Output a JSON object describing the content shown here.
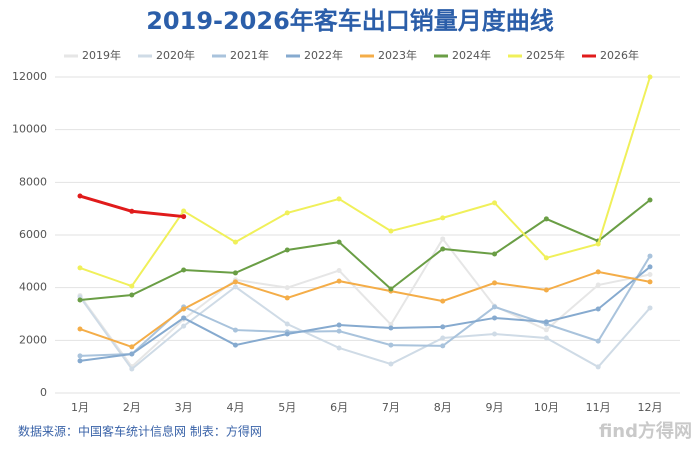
{
  "chart_data": {
    "type": "line",
    "title": "2019-2026年客车出口销量月度曲线",
    "categories": [
      "1月",
      "2月",
      "3月",
      "4月",
      "5月",
      "6月",
      "7月",
      "8月",
      "9月",
      "10月",
      "11月",
      "12月"
    ],
    "ylim": [
      0,
      12000
    ],
    "yticks": [
      0,
      2000,
      4000,
      6000,
      8000,
      10000,
      12000
    ],
    "grid": true,
    "legend": "top",
    "series": [
      {
        "name": "2019年",
        "color": "#e6e6e6",
        "values": [
          3700,
          1000,
          2800,
          4300,
          4000,
          4650,
          2600,
          5850,
          3300,
          2400,
          4100,
          4500
        ]
      },
      {
        "name": "2020年",
        "color": "#cfdbe6",
        "values": [
          3650,
          910,
          2540,
          4030,
          2620,
          1710,
          1100,
          2090,
          2240,
          2090,
          990,
          3230
        ]
      },
      {
        "name": "2021年",
        "color": "#a9c3dc",
        "values": [
          1410,
          1480,
          3270,
          2390,
          2320,
          2350,
          1820,
          1790,
          3270,
          2620,
          1970,
          5200
        ]
      },
      {
        "name": "2022年",
        "color": "#86aacf",
        "values": [
          1220,
          1480,
          2850,
          1820,
          2240,
          2580,
          2470,
          2510,
          2850,
          2700,
          3190,
          4790
        ]
      },
      {
        "name": "2023年",
        "color": "#f4ad48",
        "values": [
          2430,
          1750,
          3190,
          4220,
          3610,
          4250,
          3870,
          3490,
          4180,
          3910,
          4600,
          4220
        ]
      },
      {
        "name": "2024年",
        "color": "#6a9e45",
        "values": [
          3530,
          3720,
          4670,
          4560,
          5430,
          5730,
          3950,
          5470,
          5280,
          6610,
          5770,
          7330
        ]
      },
      {
        "name": "2025年",
        "color": "#f0f05a",
        "values": [
          4750,
          4060,
          6910,
          5730,
          6840,
          7370,
          6150,
          6650,
          7220,
          5130,
          5660,
          12000
        ]
      },
      {
        "name": "2026年",
        "color": "#e01b1b",
        "values": [
          7480,
          6900,
          6700,
          null,
          null,
          null,
          null,
          null,
          null,
          null,
          null,
          null
        ]
      }
    ],
    "source": "数据来源：中国客车统计信息网  制表：方得网",
    "watermark": "find方得网"
  }
}
